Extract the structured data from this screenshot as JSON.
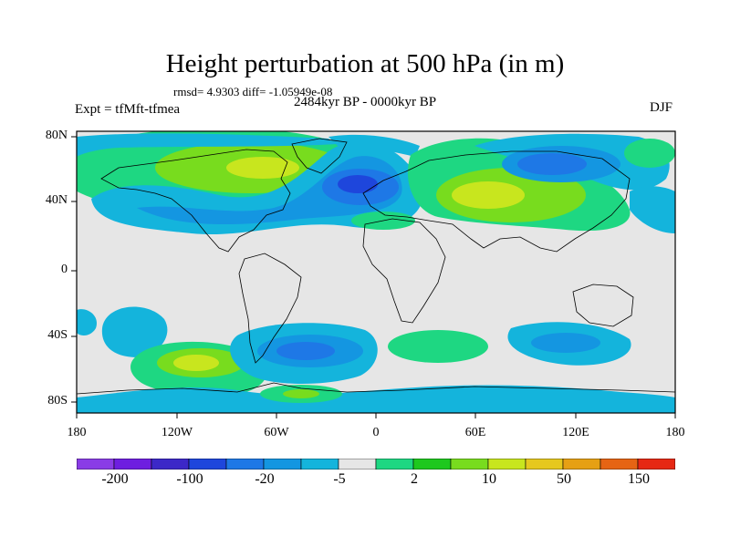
{
  "title": "Height perturbation at 500 hPa (in m)",
  "stats_line": "rmsd= 4.9303 diff= -1.05949e-08",
  "period": "2484kyr BP - 0000kyr BP",
  "experiment": "Expt = tfMft-tfmea",
  "season": "DJF",
  "lat_labels": [
    "80N",
    "40N",
    "0",
    "40S",
    "80S"
  ],
  "lon_labels": [
    "180",
    "120W",
    "60W",
    "0",
    "60E",
    "120E",
    "180"
  ],
  "colorbar": {
    "colors": [
      "#8a3ce6",
      "#6e1ee0",
      "#3c28c8",
      "#1e46dc",
      "#1e78e6",
      "#1496e1",
      "#14b4dc",
      "#e6e6e6",
      "#1ed782",
      "#1ec81e",
      "#78dc1e",
      "#c8e61e",
      "#e6c81e",
      "#e6a014",
      "#e66414",
      "#e62814"
    ],
    "labels": [
      "-200",
      "-100",
      "-20",
      "-5",
      "2",
      "10",
      "50",
      "150"
    ]
  },
  "field_colors": {
    "neg_weak": "#14b4dc",
    "neg_mid": "#1496e1",
    "neg_strong": "#1e78e6",
    "neg_core": "#1e46dc",
    "pos_weak": "#1ed782",
    "pos_mid": "#78dc1e",
    "pos_strong": "#c8e61e",
    "background": "#e6e6e6"
  }
}
